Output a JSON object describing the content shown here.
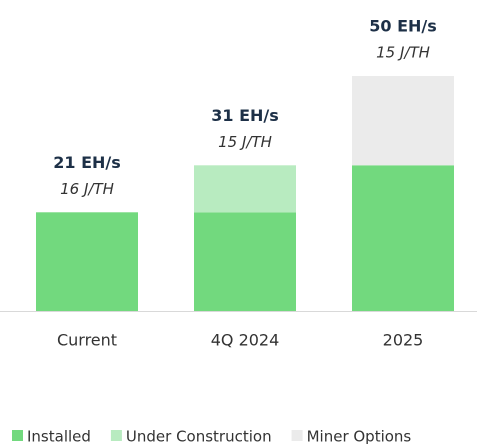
{
  "chart_data": {
    "type": "stacked_bar",
    "categories": [
      "Current",
      "4Q 2024",
      "2025"
    ],
    "series": [
      {
        "name": "Installed",
        "color": "#72d97e",
        "values": [
          21,
          21,
          31
        ]
      },
      {
        "name": "Under Construction",
        "color": "#b8ebc0",
        "values": [
          null,
          10,
          null
        ]
      },
      {
        "name": "Miner Options",
        "color": "#ebebeb",
        "values": [
          null,
          null,
          19
        ]
      }
    ],
    "annotations": [
      {
        "total": "21 EH/s",
        "efficiency": "16 J/TH"
      },
      {
        "total": "31 EH/s",
        "efficiency": "15 J/TH"
      },
      {
        "total": "50 EH/s",
        "efficiency": "15 J/TH"
      }
    ],
    "legend": "bottom"
  }
}
